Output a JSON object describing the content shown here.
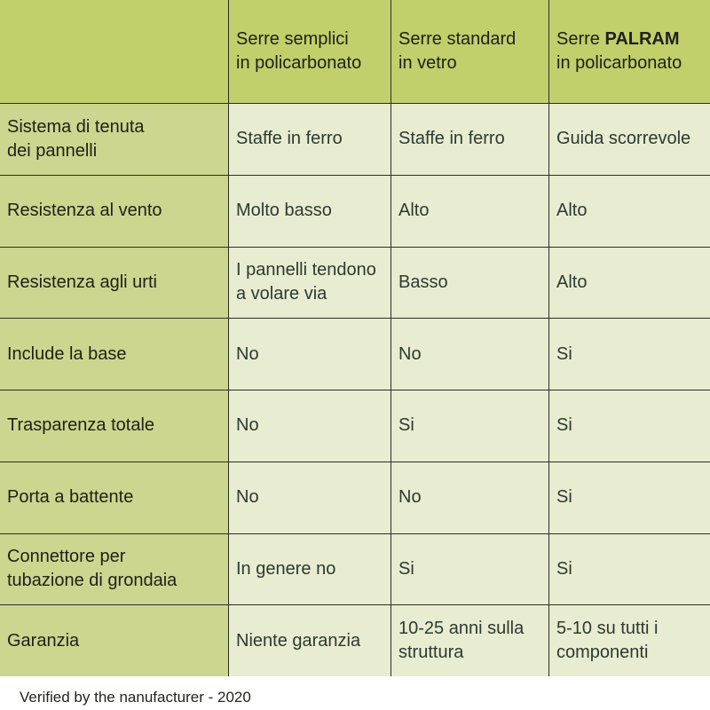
{
  "table": {
    "colors": {
      "header_bg": "#c2cf6b",
      "label_bg": "#ccd68e",
      "cell_bg": "#e8ecd0",
      "grid_line": "#2e2e28",
      "bottom_edge": "#b3b6a5",
      "header_text": "#21211b",
      "label_text": "#21211b",
      "value_text": "#2c3a33",
      "footer_text": "#23231f"
    },
    "columns": [
      {
        "title": "Serre semplici\nin policarbonato"
      },
      {
        "title": "Serre standard\nin vetro"
      },
      {
        "prefix": "Serre",
        "brand": "PALRAM",
        "rest": "\nin policarbonato"
      }
    ],
    "rows": [
      {
        "label": "Sistema di tenuta\ndei pannelli",
        "values": [
          "Staffe in ferro",
          "Staffe in ferro",
          "Guida scorrevole"
        ]
      },
      {
        "label": "Resistenza al vento",
        "values": [
          "Molto basso",
          "Alto",
          "Alto"
        ]
      },
      {
        "label": "Resistenza agli urti",
        "values": [
          "I pannelli tendono\na volare via",
          "Basso",
          "Alto"
        ]
      },
      {
        "label": "Include la base",
        "values": [
          "No",
          "No",
          "Si"
        ]
      },
      {
        "label": "Trasparenza totale",
        "values": [
          "No",
          "Si",
          "Si"
        ]
      },
      {
        "label": "Porta a battente",
        "values": [
          "No",
          "No",
          "Si"
        ]
      },
      {
        "label": "Connettore per\ntubazione di grondaia",
        "values": [
          "In genere no",
          "Si",
          "Si"
        ]
      },
      {
        "label": "Garanzia",
        "values": [
          "Niente garanzia",
          "10-25 anni sulla\nstruttura",
          "5-10 su tutti i\ncomponenti"
        ]
      }
    ]
  },
  "footer": {
    "note": "Verified by the nanufacturer - 2020"
  }
}
